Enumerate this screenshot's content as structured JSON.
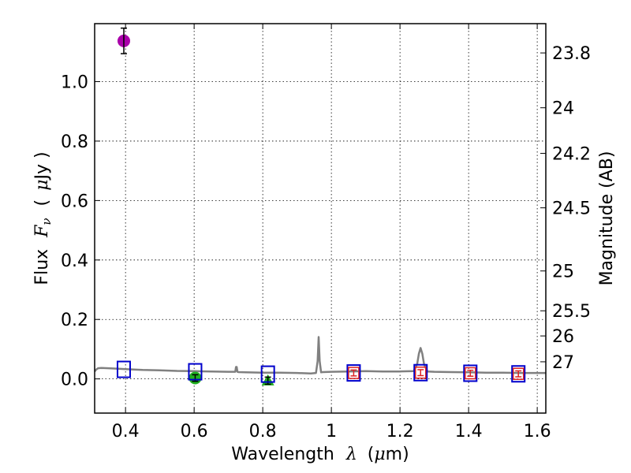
{
  "chart_data": {
    "type": "scatter",
    "xlabel": {
      "prefix": "Wavelength",
      "symbol": "λ",
      "unit_open": "(",
      "unit_mu": "μ",
      "unit_rest": "m)"
    },
    "ylabel": {
      "prefix": "Flux",
      "symbol": "F",
      "subscript": "ν",
      "unit_open": "(",
      "unit_mu": "μ",
      "unit_rest": "Jy )"
    },
    "y2label": "Magnitude (AB)",
    "xlim": [
      0.31,
      1.625
    ],
    "ylim": [
      -0.115,
      1.195
    ],
    "grid": true,
    "x_ticks": [
      0.4,
      0.6,
      0.8,
      1.0,
      1.2,
      1.4,
      1.6
    ],
    "x_tick_labels": [
      "0.4",
      "0.6",
      "0.8",
      "1",
      "1.2",
      "1.4",
      "1.6"
    ],
    "y_ticks": [
      0.0,
      0.2,
      0.4,
      0.6,
      0.8,
      1.0
    ],
    "y_tick_labels": [
      "0.0",
      "0.2",
      "0.4",
      "0.6",
      "0.8",
      "1.0"
    ],
    "y2_ticks": [
      23.8,
      24.0,
      24.2,
      24.5,
      25.0,
      25.5,
      26.0,
      27.0
    ],
    "y2_tick_labels": [
      "23.8",
      "24",
      "24.2",
      "24.5",
      "25",
      "25.5",
      "26",
      "27"
    ],
    "model_spectrum": {
      "name": "model SED",
      "color": "#808080",
      "x": [
        0.31,
        0.315,
        0.32,
        0.33,
        0.35,
        0.38,
        0.4,
        0.45,
        0.5,
        0.55,
        0.6,
        0.65,
        0.7,
        0.72,
        0.722,
        0.724,
        0.726,
        0.73,
        0.75,
        0.8,
        0.85,
        0.9,
        0.94,
        0.955,
        0.96,
        0.963,
        0.966,
        0.97,
        0.975,
        1.0,
        1.05,
        1.1,
        1.15,
        1.2,
        1.24,
        1.25,
        1.255,
        1.26,
        1.265,
        1.27,
        1.28,
        1.3,
        1.35,
        1.4,
        1.45,
        1.5,
        1.55,
        1.6,
        1.625
      ],
      "y": [
        0.025,
        0.032,
        0.036,
        0.037,
        0.036,
        0.034,
        0.033,
        0.03,
        0.029,
        0.027,
        0.026,
        0.025,
        0.024,
        0.024,
        0.04,
        0.04,
        0.024,
        0.023,
        0.022,
        0.021,
        0.021,
        0.02,
        0.018,
        0.02,
        0.06,
        0.141,
        0.06,
        0.022,
        0.023,
        0.024,
        0.025,
        0.026,
        0.025,
        0.025,
        0.026,
        0.05,
        0.085,
        0.104,
        0.085,
        0.05,
        0.025,
        0.024,
        0.023,
        0.022,
        0.021,
        0.021,
        0.02,
        0.02,
        0.02
      ]
    },
    "series": [
      {
        "name": "observed detection (purple)",
        "marker": "circle",
        "color": "#aa00aa",
        "x": [
          0.395
        ],
        "y": [
          1.137
        ],
        "yerr": [
          0.043
        ]
      },
      {
        "name": "observed (green circle)",
        "marker": "circle",
        "color": "#20b020",
        "x": [
          0.603
        ],
        "y": [
          0.003
        ],
        "yerr": [
          0.011
        ]
      },
      {
        "name": "observed (green triangle)",
        "marker": "triangle",
        "color": "#20b020",
        "x": [
          0.815
        ],
        "y": [
          -0.006
        ],
        "yerr": [
          0.012
        ]
      },
      {
        "name": "model photometry (blue squares)",
        "marker": "square",
        "color": "#0000cc",
        "x": [
          0.395,
          0.603,
          0.815,
          1.065,
          1.26,
          1.405,
          1.545
        ],
        "y": [
          0.032,
          0.024,
          0.016,
          0.02,
          0.021,
          0.019,
          0.017
        ]
      },
      {
        "name": "upper limits (red squares)",
        "marker": "square-small",
        "color": "#dd2222",
        "x": [
          1.065,
          1.26,
          1.405,
          1.545
        ],
        "y": [
          0.02,
          0.021,
          0.019,
          0.017
        ],
        "yerr": [
          0.01,
          0.01,
          0.01,
          0.01
        ]
      }
    ]
  }
}
